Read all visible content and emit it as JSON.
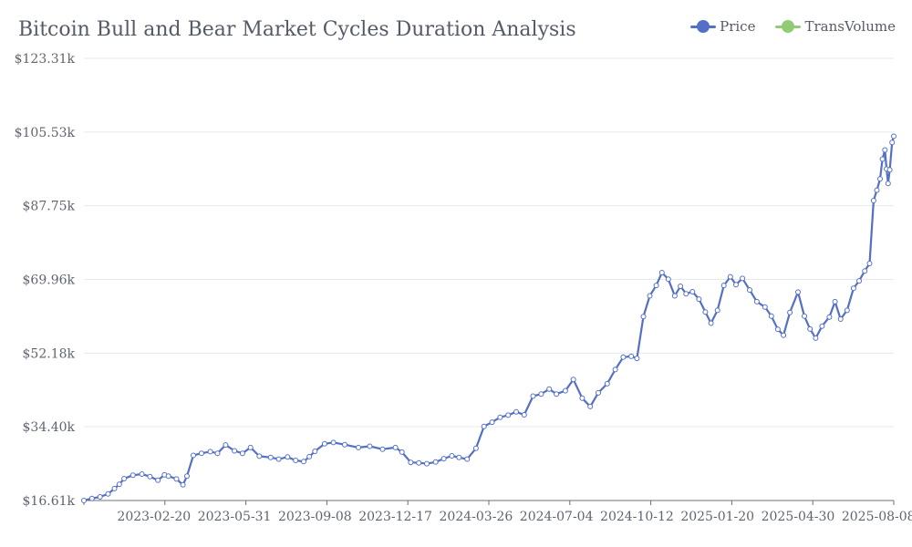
{
  "chart_data": {
    "type": "line",
    "title": "Bitcoin Bull and Bear Market Cycles Duration Analysis",
    "xlabel": "",
    "ylabel": "",
    "x_range": [
      "2022-11-25",
      "2025-08-27"
    ],
    "ylim": [
      16.61,
      123.31
    ],
    "y_tick_labels": [
      "$16.61k",
      "$34.40k",
      "$52.18k",
      "$69.96k",
      "$87.75k",
      "$105.53k",
      "$123.31k"
    ],
    "x_tick_labels": [
      "2023-02-20",
      "2023-05-31",
      "2023-09-08",
      "2023-12-17",
      "2024-03-26",
      "2024-07-04",
      "2024-10-12",
      "2025-01-20",
      "2025-04-30",
      "2025-08-08"
    ],
    "legend_position": "top-right",
    "grid": "horizontal",
    "series": [
      {
        "name": "Price",
        "color": "#5470c6",
        "points": [
          [
            "2022-11-25",
            16.61
          ],
          [
            "2022-12-05",
            17.1
          ],
          [
            "2022-12-15",
            17.5
          ],
          [
            "2022-12-25",
            18.2
          ],
          [
            "2023-01-02",
            19.5
          ],
          [
            "2023-01-08",
            20.5
          ],
          [
            "2023-01-14",
            21.9
          ],
          [
            "2023-01-25",
            22.7
          ],
          [
            "2023-02-05",
            23.0
          ],
          [
            "2023-02-15",
            22.4
          ],
          [
            "2023-02-25",
            21.5
          ],
          [
            "2023-03-05",
            22.8
          ],
          [
            "2023-03-10",
            22.5
          ],
          [
            "2023-03-20",
            21.8
          ],
          [
            "2023-03-28",
            20.4
          ],
          [
            "2023-04-02",
            22.5
          ],
          [
            "2023-04-10",
            27.5
          ],
          [
            "2023-04-20",
            28.0
          ],
          [
            "2023-05-01",
            28.4
          ],
          [
            "2023-05-10",
            28.0
          ],
          [
            "2023-05-20",
            30.0
          ],
          [
            "2023-05-31",
            28.6
          ],
          [
            "2023-06-10",
            28.0
          ],
          [
            "2023-06-20",
            29.4
          ],
          [
            "2023-07-01",
            27.3
          ],
          [
            "2023-07-15",
            27.0
          ],
          [
            "2023-07-25",
            26.6
          ],
          [
            "2023-08-05",
            27.1
          ],
          [
            "2023-08-15",
            26.3
          ],
          [
            "2023-08-25",
            26.0
          ],
          [
            "2023-09-01",
            27.2
          ],
          [
            "2023-09-08",
            28.5
          ],
          [
            "2023-09-20",
            30.3
          ],
          [
            "2023-10-01",
            30.6
          ],
          [
            "2023-10-15",
            30.1
          ],
          [
            "2023-11-01",
            29.4
          ],
          [
            "2023-11-15",
            29.7
          ],
          [
            "2023-12-01",
            29.0
          ],
          [
            "2023-12-17",
            29.4
          ],
          [
            "2023-12-25",
            28.3
          ],
          [
            "2024-01-05",
            25.8
          ],
          [
            "2024-01-15",
            25.7
          ],
          [
            "2024-01-25",
            25.5
          ],
          [
            "2024-02-05",
            25.9
          ],
          [
            "2024-02-15",
            26.7
          ],
          [
            "2024-02-25",
            27.4
          ],
          [
            "2024-03-05",
            27.0
          ],
          [
            "2024-03-15",
            26.6
          ],
          [
            "2024-03-26",
            29.2
          ],
          [
            "2024-04-05",
            34.5
          ],
          [
            "2024-04-15",
            35.5
          ],
          [
            "2024-04-25",
            36.7
          ],
          [
            "2024-05-05",
            37.2
          ],
          [
            "2024-05-15",
            38.0
          ],
          [
            "2024-05-25",
            37.3
          ],
          [
            "2024-06-05",
            41.8
          ],
          [
            "2024-06-15",
            42.3
          ],
          [
            "2024-06-25",
            43.5
          ],
          [
            "2024-07-04",
            42.3
          ],
          [
            "2024-07-15",
            43.1
          ],
          [
            "2024-07-25",
            45.8
          ],
          [
            "2024-08-05",
            41.3
          ],
          [
            "2024-08-15",
            39.3
          ],
          [
            "2024-08-25",
            42.6
          ],
          [
            "2024-09-05",
            44.8
          ],
          [
            "2024-09-15",
            48.2
          ],
          [
            "2024-09-25",
            51.2
          ],
          [
            "2024-10-05",
            51.4
          ],
          [
            "2024-10-12",
            50.9
          ],
          [
            "2024-10-20",
            61.0
          ],
          [
            "2024-10-28",
            66.0
          ],
          [
            "2024-11-05",
            68.5
          ],
          [
            "2024-11-12",
            71.6
          ],
          [
            "2024-11-20",
            70.0
          ],
          [
            "2024-11-28",
            66.0
          ],
          [
            "2024-12-05",
            68.3
          ],
          [
            "2024-12-12",
            66.5
          ],
          [
            "2024-12-20",
            67.0
          ],
          [
            "2024-12-28",
            65.2
          ],
          [
            "2025-01-05",
            62.1
          ],
          [
            "2025-01-12",
            59.4
          ],
          [
            "2025-01-20",
            62.5
          ],
          [
            "2025-01-28",
            68.5
          ],
          [
            "2025-02-05",
            70.6
          ],
          [
            "2025-02-12",
            68.7
          ],
          [
            "2025-02-20",
            70.2
          ],
          [
            "2025-03-01",
            67.4
          ],
          [
            "2025-03-10",
            64.6
          ],
          [
            "2025-03-20",
            63.3
          ],
          [
            "2025-03-28",
            61.1
          ],
          [
            "2025-04-05",
            57.9
          ],
          [
            "2025-04-12",
            56.5
          ],
          [
            "2025-04-20",
            62.0
          ],
          [
            "2025-04-30",
            66.9
          ],
          [
            "2025-05-08",
            61.1
          ],
          [
            "2025-05-15",
            58.0
          ],
          [
            "2025-05-22",
            55.8
          ],
          [
            "2025-05-30",
            58.7
          ],
          [
            "2025-06-08",
            60.9
          ],
          [
            "2025-06-15",
            64.6
          ],
          [
            "2025-06-22",
            60.4
          ],
          [
            "2025-06-30",
            62.5
          ],
          [
            "2025-07-08",
            67.8
          ],
          [
            "2025-07-15",
            69.6
          ],
          [
            "2025-07-22",
            72.0
          ],
          [
            "2025-07-28",
            73.8
          ],
          [
            "2025-08-02",
            89.0
          ],
          [
            "2025-08-06",
            91.5
          ],
          [
            "2025-08-10",
            94.2
          ],
          [
            "2025-08-13",
            99.0
          ],
          [
            "2025-08-16",
            101.2
          ],
          [
            "2025-08-18",
            96.6
          ],
          [
            "2025-08-20",
            93.1
          ],
          [
            "2025-08-22",
            96.4
          ],
          [
            "2025-08-25",
            103.0
          ],
          [
            "2025-08-27",
            104.5
          ]
        ]
      },
      {
        "name": "TransVolume",
        "color": "#91cc75",
        "points": []
      }
    ]
  }
}
